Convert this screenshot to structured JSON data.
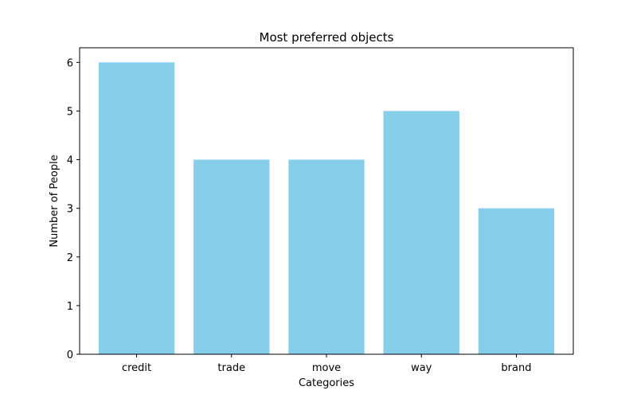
{
  "chart_data": {
    "type": "bar",
    "title": "Most preferred objects",
    "xlabel": "Categories",
    "ylabel": "Number of People",
    "categories": [
      "credit",
      "trade",
      "move",
      "way",
      "brand"
    ],
    "values": [
      6,
      4,
      4,
      5,
      3
    ],
    "ylim": [
      0,
      6.3
    ],
    "yticks": [
      0,
      1,
      2,
      3,
      4,
      5,
      6
    ],
    "bar_color": "#87ceeb",
    "grid": false,
    "legend": "none"
  }
}
